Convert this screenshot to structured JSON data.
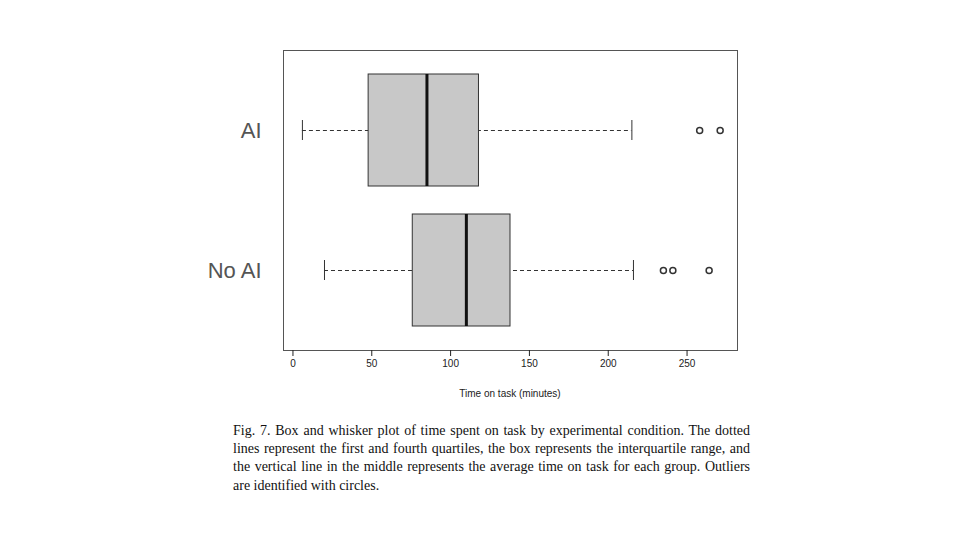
{
  "chart_data": {
    "type": "box",
    "x_label": "Time on task (minutes)",
    "caption": "Fig. 7. Box and whisker plot of time spent on task by experimental condition. The dotted lines represent the first and fourth quartiles, the box represents the interquartile range, and the vertical line in the middle represents the average time on task for each group. Outliers are identified with circles.",
    "categories": [
      "AI",
      "No AI"
    ],
    "min": [
      6,
      20
    ],
    "q1": [
      48,
      76
    ],
    "median": [
      85,
      110
    ],
    "q3": [
      118,
      138
    ],
    "max": [
      215,
      216
    ],
    "outliers": [
      [
        258,
        271
      ],
      [
        235,
        241,
        264
      ]
    ],
    "color": "#c8c8c8",
    "xlim": [
      -6,
      282
    ],
    "xticks": [
      0,
      50,
      100,
      150,
      200,
      250
    ]
  }
}
